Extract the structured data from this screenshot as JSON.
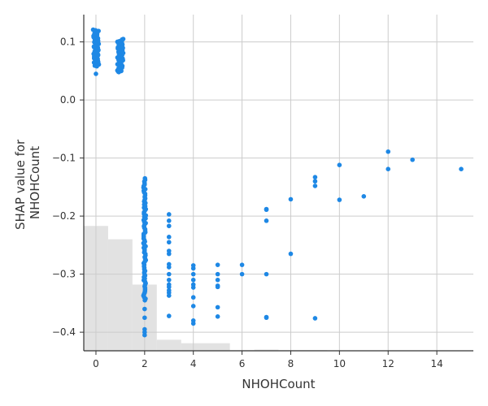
{
  "chart_data": {
    "type": "scatter",
    "xlabel": "NHOHCount",
    "ylabel_lines": [
      "SHAP value for",
      "NHOHCount"
    ],
    "xlim": [
      -0.5,
      15.5
    ],
    "ylim": [
      -0.432,
      0.147
    ],
    "xticks": [
      0,
      2,
      4,
      6,
      8,
      10,
      12,
      14
    ],
    "yticks": [
      0.1,
      0.0,
      -0.1,
      -0.2,
      -0.3,
      -0.4
    ],
    "ytick_labels": [
      "0.1",
      "0.0",
      "−0.1",
      "−0.2",
      "−0.3",
      "−0.4"
    ],
    "grid": true,
    "point_color": "#1e88e5",
    "histogram_color": "#dddddd",
    "histogram": [
      {
        "x0": -0.5,
        "x1": 0.5,
        "top": -0.217
      },
      {
        "x0": 0.5,
        "x1": 1.5,
        "top": -0.24
      },
      {
        "x0": 1.5,
        "x1": 2.5,
        "top": -0.318
      },
      {
        "x0": 2.5,
        "x1": 3.5,
        "top": -0.413
      },
      {
        "x0": 3.5,
        "x1": 5.5,
        "top": -0.419
      },
      {
        "x0": 5.5,
        "x1": 6.5,
        "top": -0.431
      },
      {
        "x0": 6.5,
        "x1": 7.5,
        "top": -0.43
      },
      {
        "x0": 7.5,
        "x1": 8.5,
        "top": -0.431
      },
      {
        "x0": 8.5,
        "x1": 9.5,
        "top": -0.431
      }
    ],
    "clusters": [
      {
        "x": 0,
        "y_min": 0.058,
        "y_max": 0.121,
        "count": 60,
        "jitter": 0.12
      },
      {
        "x": 1,
        "y_min": 0.048,
        "y_max": 0.105,
        "count": 60,
        "jitter": 0.12
      },
      {
        "x": 2,
        "y_min": -0.345,
        "y_max": -0.135,
        "count": 80,
        "jitter": 0.05
      }
    ],
    "points": [
      [
        0,
        0.045
      ],
      [
        2,
        -0.36
      ],
      [
        2,
        -0.375
      ],
      [
        2,
        -0.4
      ],
      [
        2,
        -0.405
      ],
      [
        2,
        -0.395
      ],
      [
        3,
        -0.197
      ],
      [
        3,
        -0.208
      ],
      [
        3,
        -0.217
      ],
      [
        3,
        -0.236
      ],
      [
        3,
        -0.245
      ],
      [
        3,
        -0.26
      ],
      [
        3,
        -0.265
      ],
      [
        3,
        -0.283
      ],
      [
        3,
        -0.288
      ],
      [
        3,
        -0.3
      ],
      [
        3,
        -0.31
      ],
      [
        3,
        -0.318
      ],
      [
        3,
        -0.322
      ],
      [
        3,
        -0.328
      ],
      [
        3,
        -0.332
      ],
      [
        3,
        -0.337
      ],
      [
        3,
        -0.372
      ],
      [
        4,
        -0.285
      ],
      [
        4,
        -0.29
      ],
      [
        4,
        -0.3
      ],
      [
        4,
        -0.31
      ],
      [
        4,
        -0.318
      ],
      [
        4,
        -0.323
      ],
      [
        4,
        -0.34
      ],
      [
        4,
        -0.355
      ],
      [
        4,
        -0.38
      ],
      [
        4,
        -0.385
      ],
      [
        5,
        -0.284
      ],
      [
        5,
        -0.3
      ],
      [
        5,
        -0.31
      ],
      [
        5,
        -0.32
      ],
      [
        5,
        -0.322
      ],
      [
        5,
        -0.357
      ],
      [
        5,
        -0.373
      ],
      [
        6,
        -0.284
      ],
      [
        6,
        -0.3
      ],
      [
        7,
        -0.188
      ],
      [
        7,
        -0.189
      ],
      [
        7,
        -0.208
      ],
      [
        7,
        -0.3
      ],
      [
        7,
        -0.374
      ],
      [
        7,
        -0.375
      ],
      [
        8,
        -0.171
      ],
      [
        8,
        -0.265
      ],
      [
        9,
        -0.133
      ],
      [
        9,
        -0.14
      ],
      [
        9,
        -0.148
      ],
      [
        9,
        -0.376
      ],
      [
        10,
        -0.112
      ],
      [
        10,
        -0.172
      ],
      [
        11,
        -0.166
      ],
      [
        12,
        -0.089
      ],
      [
        12,
        -0.119
      ],
      [
        13,
        -0.103
      ],
      [
        15,
        -0.119
      ]
    ]
  }
}
